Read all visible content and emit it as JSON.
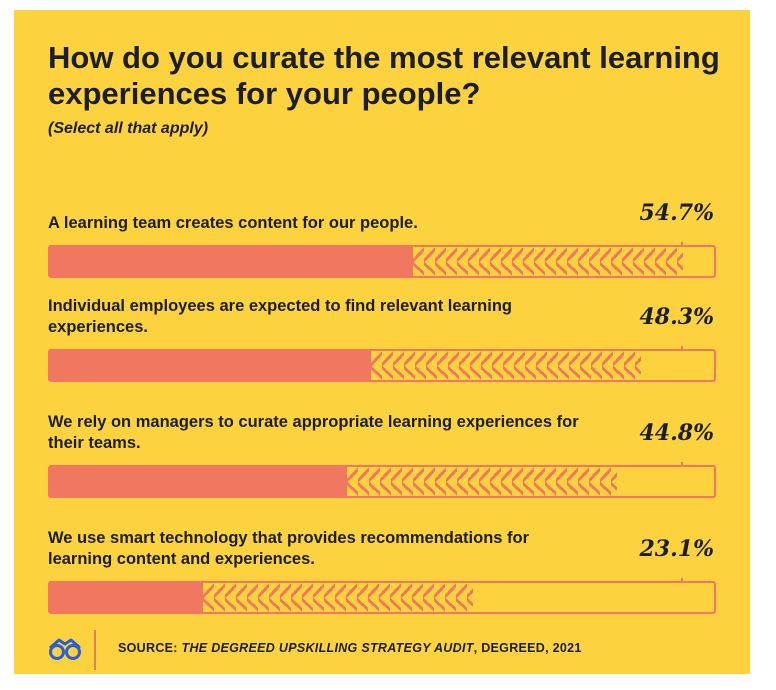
{
  "chart_data": {
    "type": "bar",
    "title": "How do you curate the most relevant learning experiences for your people?",
    "subtitle": "(Select all that apply)",
    "categories": [
      "A learning team creates content for our people.",
      "Individual employees are expected to find relevant learning experiences.",
      "We rely on managers to curate appropriate learning experiences for their teams.",
      "We use smart technology that provides recommendations for learning content and experiences."
    ],
    "values": [
      54.7,
      48.3,
      44.8,
      23.1
    ],
    "value_labels": [
      "54.7%",
      "48.3%",
      "44.8%",
      "23.1%"
    ],
    "ylim": [
      0,
      100
    ],
    "grid": false,
    "colors": {
      "bar": "#f07860",
      "background": "#fdd23f",
      "text": "#1b1f2b"
    }
  },
  "footer": {
    "logo_icon": "degreed-glasses-icon",
    "source_prefix": "SOURCE: ",
    "source_title": "THE DEGREED UPSKILLING STRATEGY AUDIT",
    "source_suffix": ", DEGREED, 2021"
  }
}
